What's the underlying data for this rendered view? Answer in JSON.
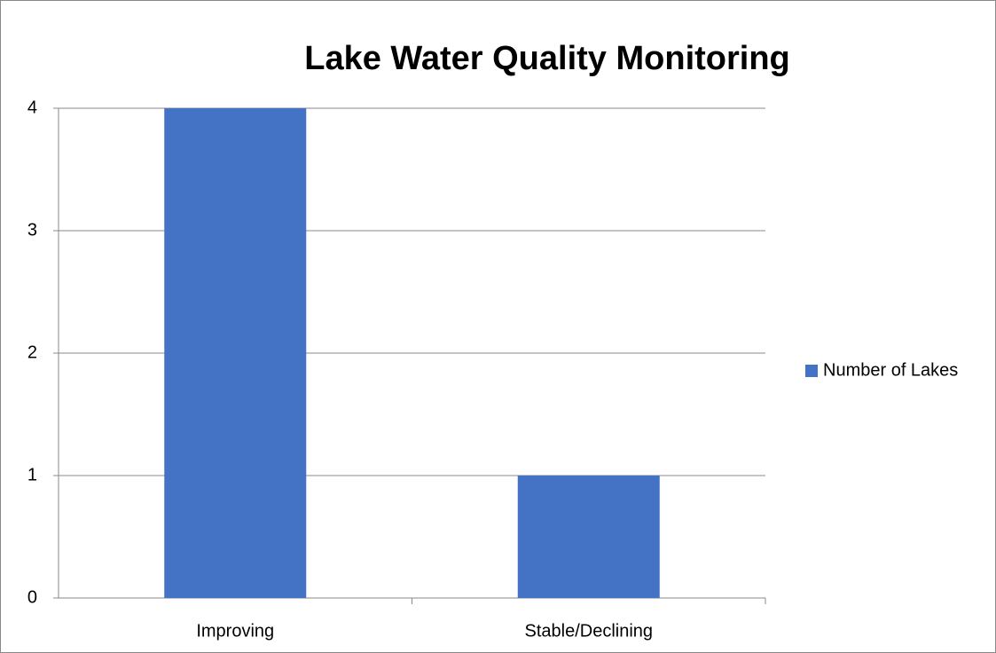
{
  "chart_data": {
    "type": "bar",
    "title": "Lake Water Quality Monitoring",
    "categories": [
      "Improving",
      "Stable/Declining"
    ],
    "series": [
      {
        "name": "Number of Lakes",
        "color": "#4472c4",
        "values": [
          4,
          1
        ]
      }
    ],
    "ylim": [
      0,
      4
    ],
    "yticks": [
      0,
      1,
      2,
      3,
      4
    ],
    "grid": true,
    "legend": "right"
  }
}
